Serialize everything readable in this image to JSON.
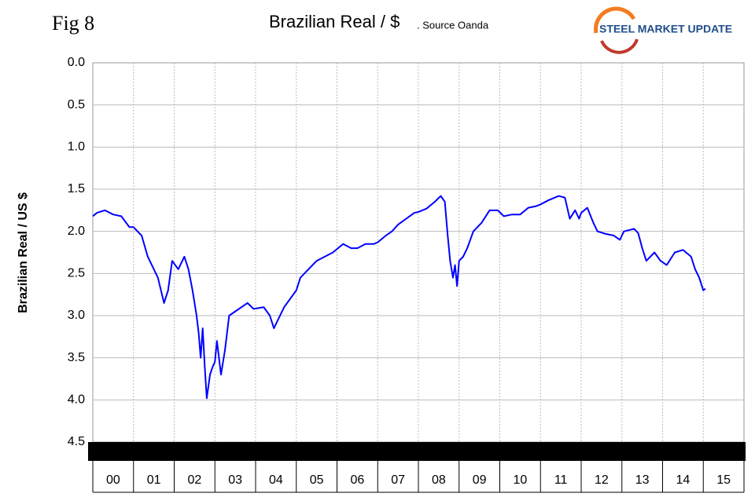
{
  "chart_data": {
    "type": "line",
    "figure_label": "Fig 8",
    "title": "Brazilian Real / $",
    "subtitle": ". Source Oanda",
    "logo": "STEEL MARKET UPDATE",
    "ylabel": "Brazilian Real / US $",
    "color": "#0000ff",
    "y_inverted": true,
    "grid": true,
    "ylim": [
      0,
      4.5
    ],
    "yticks": [
      {
        "value": 0,
        "label": "0.0"
      },
      0.5,
      {
        "value": 1,
        "label": "1.0"
      },
      1.5,
      {
        "value": 2,
        "label": "2.0"
      },
      2.5,
      {
        "value": 3,
        "label": "3.0"
      },
      3.5,
      {
        "value": 4,
        "label": "4.0"
      },
      4.5
    ],
    "xlim": [
      0,
      16
    ],
    "xticks": [
      {
        "value": 0,
        "label": "00"
      },
      {
        "value": 1,
        "label": "01"
      },
      {
        "value": 2,
        "label": "02"
      },
      {
        "value": 3,
        "label": "03"
      },
      {
        "value": 4,
        "label": "04"
      },
      {
        "value": 5,
        "label": "05"
      },
      {
        "value": 6,
        "label": "06"
      },
      {
        "value": 7,
        "label": "07"
      },
      {
        "value": 8,
        "label": "08"
      },
      {
        "value": 9,
        "label": "09"
      },
      {
        "value": 10,
        "label": "10"
      },
      {
        "value": 11,
        "label": "11"
      },
      {
        "value": 12,
        "label": "12"
      },
      {
        "value": 13,
        "label": "13"
      },
      {
        "value": 14,
        "label": "14"
      },
      {
        "value": 15,
        "label": "15"
      }
    ],
    "x": [
      0,
      0.1,
      0.3,
      0.5,
      0.7,
      0.9,
      1.0,
      1.2,
      1.35,
      1.5,
      1.6,
      1.75,
      1.85,
      1.95,
      2.1,
      2.25,
      2.35,
      2.45,
      2.55,
      2.6,
      2.65,
      2.7,
      2.75,
      2.8,
      2.88,
      2.95,
      3.0,
      3.05,
      3.15,
      3.25,
      3.35,
      3.5,
      3.65,
      3.8,
      3.95,
      4.2,
      4.35,
      4.45,
      4.55,
      4.7,
      4.85,
      5.0,
      5.1,
      5.3,
      5.5,
      5.7,
      5.9,
      6.15,
      6.35,
      6.5,
      6.7,
      6.9,
      7.0,
      7.2,
      7.35,
      7.5,
      7.7,
      7.9,
      8.0,
      8.2,
      8.4,
      8.55,
      8.65,
      8.72,
      8.78,
      8.85,
      8.9,
      8.95,
      9.0,
      9.1,
      9.2,
      9.35,
      9.55,
      9.75,
      9.95,
      10.1,
      10.3,
      10.5,
      10.7,
      10.9,
      11.0,
      11.2,
      11.45,
      11.6,
      11.72,
      11.85,
      11.95,
      12.0,
      12.15,
      12.3,
      12.4,
      12.6,
      12.8,
      12.95,
      13.05,
      13.3,
      13.4,
      13.5,
      13.6,
      13.7,
      13.8,
      13.95,
      14.1,
      14.3,
      14.5,
      14.7,
      14.8,
      14.9,
      15.0,
      15.05
    ],
    "values": [
      1.82,
      1.78,
      1.75,
      1.8,
      1.82,
      1.95,
      1.95,
      2.05,
      2.3,
      2.45,
      2.55,
      2.85,
      2.7,
      2.35,
      2.45,
      2.3,
      2.45,
      2.7,
      3.0,
      3.2,
      3.5,
      3.15,
      3.6,
      3.98,
      3.7,
      3.6,
      3.55,
      3.3,
      3.7,
      3.4,
      3.0,
      2.95,
      2.9,
      2.85,
      2.92,
      2.9,
      3.0,
      3.15,
      3.05,
      2.9,
      2.8,
      2.7,
      2.55,
      2.45,
      2.35,
      2.3,
      2.25,
      2.15,
      2.2,
      2.2,
      2.15,
      2.15,
      2.13,
      2.05,
      2.0,
      1.92,
      1.85,
      1.78,
      1.77,
      1.73,
      1.65,
      1.58,
      1.65,
      2.05,
      2.35,
      2.55,
      2.4,
      2.65,
      2.35,
      2.3,
      2.2,
      2.0,
      1.9,
      1.75,
      1.75,
      1.82,
      1.8,
      1.8,
      1.72,
      1.7,
      1.68,
      1.63,
      1.58,
      1.6,
      1.85,
      1.75,
      1.85,
      1.78,
      1.72,
      1.9,
      2.0,
      2.03,
      2.05,
      2.1,
      2.0,
      1.97,
      2.02,
      2.2,
      2.35,
      2.3,
      2.25,
      2.35,
      2.4,
      2.25,
      2.22,
      2.3,
      2.45,
      2.55,
      2.7,
      2.68
    ]
  }
}
